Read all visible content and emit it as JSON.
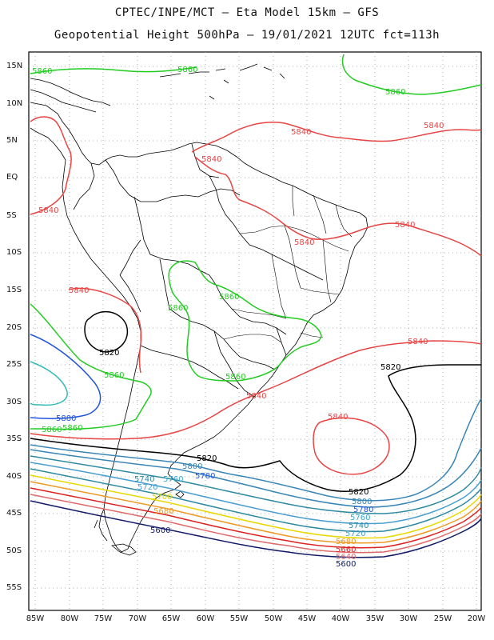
{
  "header": {
    "line1": "CPTEC/INPE/MCT –  Eta Model 15km – GFS",
    "line2": "Geopotential Height 500hPa – 19/01/2021 12UTC fct=113h"
  },
  "axes": {
    "lat_labels": [
      "15N",
      "10N",
      "5N",
      "EQ",
      "5S",
      "10S",
      "15S",
      "20S",
      "25S",
      "30S",
      "35S",
      "40S",
      "45S",
      "50S",
      "55S"
    ],
    "lon_labels": [
      "85W",
      "80W",
      "75W",
      "70W",
      "65W",
      "60W",
      "55W",
      "50W",
      "45W",
      "40W",
      "35W",
      "30W",
      "25W",
      "20W"
    ]
  },
  "colors": {
    "c5860": "#22cc22",
    "c5840": "#e84444",
    "c5820": "#000000",
    "c5800": "#3a86b6",
    "c5780": "#2255dd",
    "c5760": "#33aacc",
    "c5740": "#2d8aa0",
    "c5720": "#4a9fcf",
    "c5700": "#e8d800",
    "c5680": "#ee9922",
    "c5660": "#dd2222",
    "c5640": "#e06a6a",
    "c5600": "#111a66",
    "coast": "#000000",
    "grid": "#999999"
  },
  "contour_labels": [
    {
      "text": "5860",
      "color": "c5860"
    },
    {
      "text": "5860",
      "color": "c5860"
    },
    {
      "text": "5860",
      "color": "c5860"
    },
    {
      "text": "5840",
      "color": "c5840"
    },
    {
      "text": "5840",
      "color": "c5840"
    },
    {
      "text": "5840",
      "color": "c5840"
    },
    {
      "text": "5840",
      "color": "c5840"
    },
    {
      "text": "5840",
      "color": "c5840"
    },
    {
      "text": "5840",
      "color": "c5840"
    },
    {
      "text": "5840",
      "color": "c5840"
    },
    {
      "text": "5860",
      "color": "c5860"
    },
    {
      "text": "5860",
      "color": "c5860"
    },
    {
      "text": "5820",
      "color": "c5820"
    },
    {
      "text": "5860",
      "color": "c5860"
    },
    {
      "text": "5860",
      "color": "c5860"
    },
    {
      "text": "5840",
      "color": "c5840"
    },
    {
      "text": "5820",
      "color": "c5820"
    },
    {
      "text": "5840",
      "color": "c5840"
    },
    {
      "text": "5840",
      "color": "c5840"
    },
    {
      "text": "5860",
      "color": "c5860"
    },
    {
      "text": "5880",
      "color": "c5780"
    },
    {
      "text": "5860",
      "color": "c5860"
    },
    {
      "text": "5820",
      "color": "c5820"
    },
    {
      "text": "5800",
      "color": "c5800"
    },
    {
      "text": "5780",
      "color": "c5780"
    },
    {
      "text": "5760",
      "color": "c5760"
    },
    {
      "text": "5740",
      "color": "c5740"
    },
    {
      "text": "5720",
      "color": "c5720"
    },
    {
      "text": "5700",
      "color": "c5700"
    },
    {
      "text": "5680",
      "color": "c5680"
    },
    {
      "text": "5600",
      "color": "c5600"
    },
    {
      "text": "5820",
      "color": "c5820"
    },
    {
      "text": "5800",
      "color": "c5800"
    },
    {
      "text": "5780",
      "color": "c5780"
    },
    {
      "text": "5760",
      "color": "c5760"
    },
    {
      "text": "5740",
      "color": "c5740"
    },
    {
      "text": "5720",
      "color": "c5720"
    },
    {
      "text": "5680",
      "color": "c5680"
    },
    {
      "text": "5660",
      "color": "c5660"
    },
    {
      "text": "5640",
      "color": "c5640"
    },
    {
      "text": "5600",
      "color": "c5600"
    }
  ]
}
